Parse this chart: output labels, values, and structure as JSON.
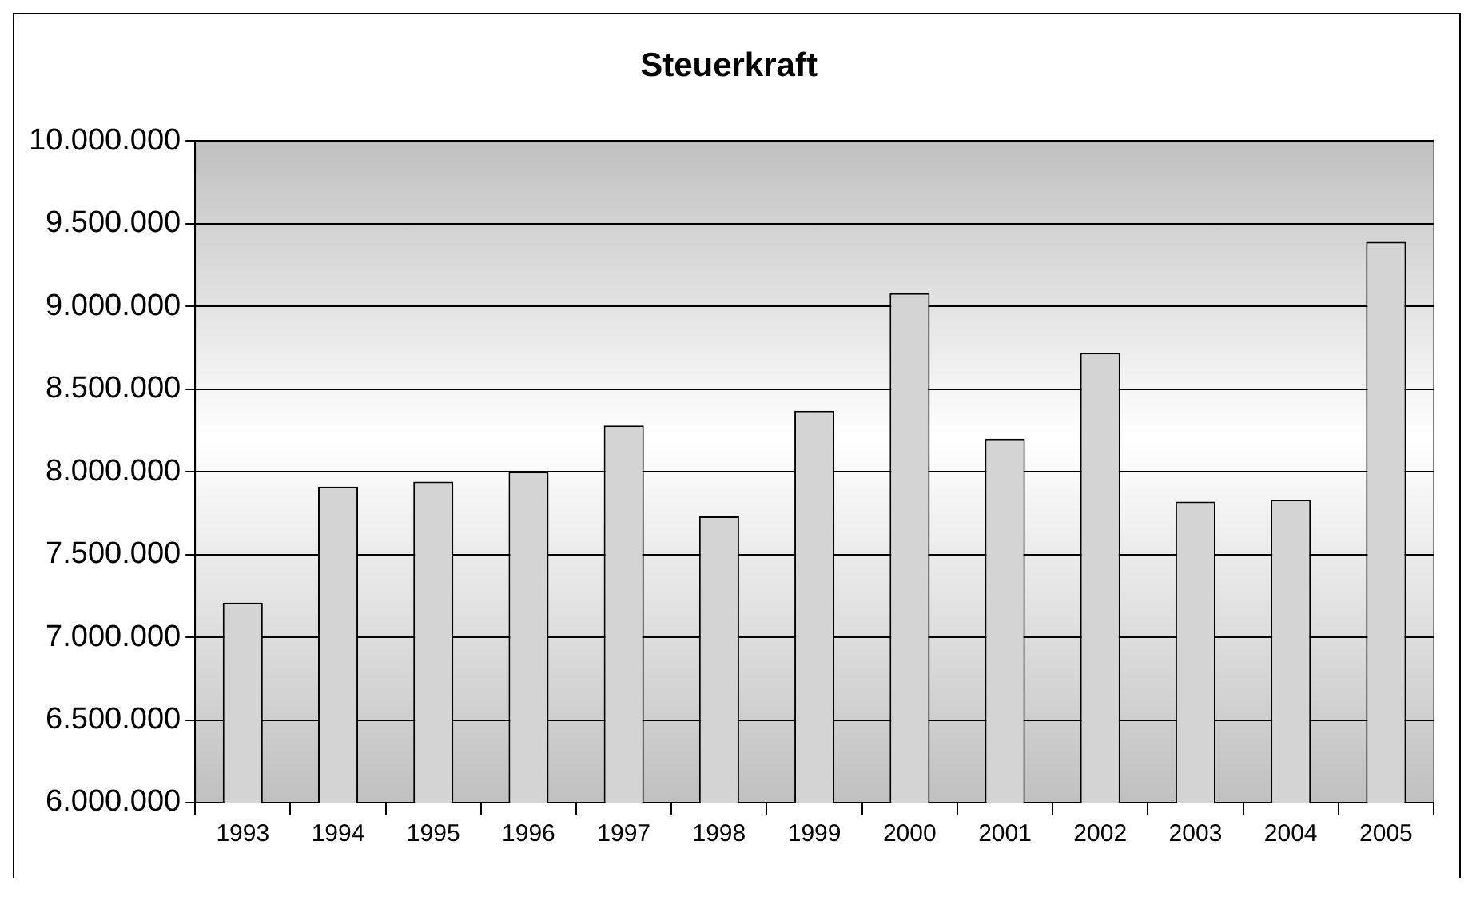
{
  "chart_data": {
    "type": "bar",
    "title": "Steuerkraft",
    "categories": [
      "1993",
      "1994",
      "1995",
      "1996",
      "1997",
      "1998",
      "1999",
      "2000",
      "2001",
      "2002",
      "2003",
      "2004",
      "2005"
    ],
    "values": [
      7210000,
      7910000,
      7940000,
      8000000,
      8280000,
      7730000,
      8370000,
      9080000,
      8200000,
      8720000,
      7820000,
      7830000,
      9390000
    ],
    "color": "#d4d4d4",
    "ylim": [
      6000000,
      10000000
    ],
    "yticks": [
      {
        "value": 6000000,
        "label": "6.000.000"
      },
      {
        "value": 6500000,
        "label": "6.500.000"
      },
      {
        "value": 7000000,
        "label": "7.000.000"
      },
      {
        "value": 7500000,
        "label": "7.500.000"
      },
      {
        "value": 8000000,
        "label": "8.000.000"
      },
      {
        "value": 8500000,
        "label": "8.500.000"
      },
      {
        "value": 9000000,
        "label": "9.000.000"
      },
      {
        "value": 9500000,
        "label": "9.500.000"
      },
      {
        "value": 10000000,
        "label": "10.000.000"
      }
    ],
    "grid": "y",
    "legend": false
  }
}
